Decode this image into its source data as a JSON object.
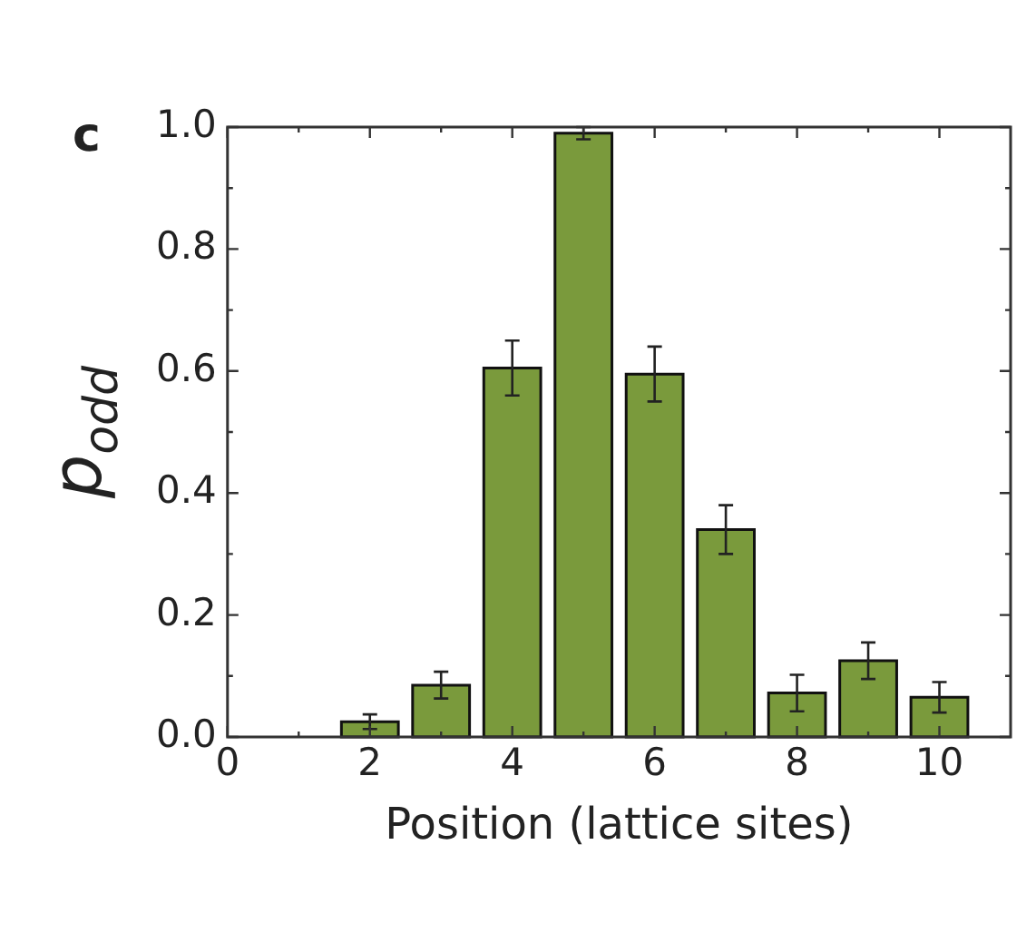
{
  "chart_data": {
    "type": "bar",
    "xlabel": "Position (lattice sites)",
    "ylabel": "p$_{odd}$",
    "annotations": [
      "c"
    ],
    "x": [
      2,
      3,
      4,
      5,
      6,
      7,
      8,
      9,
      10
    ],
    "values": [
      0.025,
      0.085,
      0.605,
      0.99,
      0.595,
      0.34,
      0.072,
      0.125,
      0.065
    ],
    "errors": [
      0.012,
      0.022,
      0.045,
      0.01,
      0.045,
      0.04,
      0.03,
      0.03,
      0.025
    ],
    "color": "#7a9a3c",
    "xlim": [
      0,
      11
    ],
    "xticks": [
      0,
      {
        "value": 1,
        "label": null
      },
      2,
      {
        "value": 3,
        "label": null
      },
      4,
      {
        "value": 5,
        "label": null
      },
      6,
      {
        "value": 7,
        "label": null
      },
      8,
      {
        "value": 9,
        "label": null
      },
      10
    ],
    "ylim": [
      0,
      1
    ],
    "yticks": [
      "0.0",
      {
        "value": 0.1,
        "label": null
      },
      0.2,
      {
        "value": 0.3,
        "label": null
      },
      0.4,
      {
        "value": 0.5,
        "label": null
      },
      0.6,
      {
        "value": 0.7,
        "label": null
      },
      0.8,
      {
        "value": 0.9,
        "label": null
      },
      "1.0"
    ],
    "grid": false,
    "legend": false
  }
}
